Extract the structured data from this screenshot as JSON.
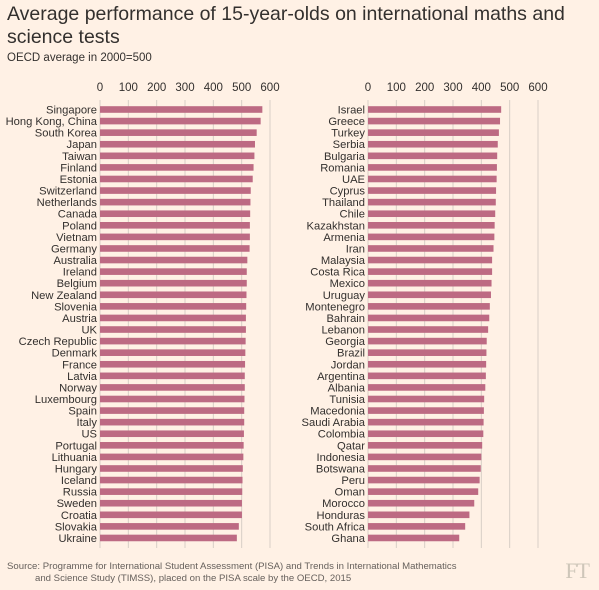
{
  "header": {
    "title": "Average performance of 15-year-olds on international maths and science tests",
    "subtitle": "OECD average in 2000=500"
  },
  "footer": {
    "source_line1": "Source: Programme for International Student Assessment (PISA) and Trends in International Mathematics",
    "source_line2": "and Science Study (TIMSS), placed on the PISA scale by the OECD, 2015",
    "logo": "FT"
  },
  "colors": {
    "background": "#fff1e5",
    "bar": "#bd6a83",
    "grid": "#d8cfc6",
    "text": "#33302e"
  },
  "chart_data": [
    {
      "type": "bar",
      "orientation": "horizontal",
      "xlim": [
        0,
        600
      ],
      "ticks": [
        0,
        100,
        200,
        300,
        400,
        500,
        600
      ],
      "grid": true,
      "categories": [
        "Singapore",
        "Hong Kong, China",
        "South Korea",
        "Japan",
        "Taiwan",
        "Finland",
        "Estonia",
        "Switzerland",
        "Netherlands",
        "Canada",
        "Poland",
        "Vietnam",
        "Germany",
        "Australia",
        "Ireland",
        "Belgium",
        "New Zealand",
        "Slovenia",
        "Austria",
        "UK",
        "Czech Republic",
        "Denmark",
        "France",
        "Latvia",
        "Norway",
        "Luxembourg",
        "Spain",
        "Italy",
        "US",
        "Portugal",
        "Lithuania",
        "Hungary",
        "Iceland",
        "Russia",
        "Sweden",
        "Croatia",
        "Slovakia",
        "Ukraine"
      ],
      "values": [
        573,
        567,
        553,
        547,
        545,
        542,
        539,
        532,
        531,
        530,
        529,
        529,
        528,
        520,
        518,
        518,
        517,
        516,
        515,
        515,
        514,
        513,
        512,
        511,
        511,
        510,
        509,
        509,
        508,
        507,
        506,
        504,
        503,
        502,
        501,
        501,
        490,
        483
      ]
    },
    {
      "type": "bar",
      "orientation": "horizontal",
      "xlim": [
        0,
        600
      ],
      "ticks": [
        0,
        100,
        200,
        300,
        400,
        500,
        600
      ],
      "grid": true,
      "categories": [
        "Israel",
        "Greece",
        "Turkey",
        "Serbia",
        "Bulgaria",
        "Romania",
        "UAE",
        "Cyprus",
        "Thailand",
        "Chile",
        "Kazakhstan",
        "Armenia",
        "Iran",
        "Malaysia",
        "Costa Rica",
        "Mexico",
        "Uruguay",
        "Montenegro",
        "Bahrain",
        "Lebanon",
        "Georgia",
        "Brazil",
        "Jordan",
        "Argentina",
        "Albania",
        "Tunisia",
        "Macedonia",
        "Saudi Arabia",
        "Colombia",
        "Qatar",
        "Indonesia",
        "Botswana",
        "Peru",
        "Oman",
        "Morocco",
        "Honduras",
        "South Africa",
        "Ghana"
      ],
      "values": [
        470,
        466,
        462,
        458,
        456,
        455,
        454,
        452,
        451,
        449,
        447,
        446,
        443,
        438,
        438,
        436,
        434,
        430,
        428,
        424,
        419,
        418,
        417,
        416,
        414,
        410,
        409,
        408,
        407,
        403,
        400,
        398,
        394,
        389,
        375,
        358,
        343,
        322
      ]
    }
  ]
}
